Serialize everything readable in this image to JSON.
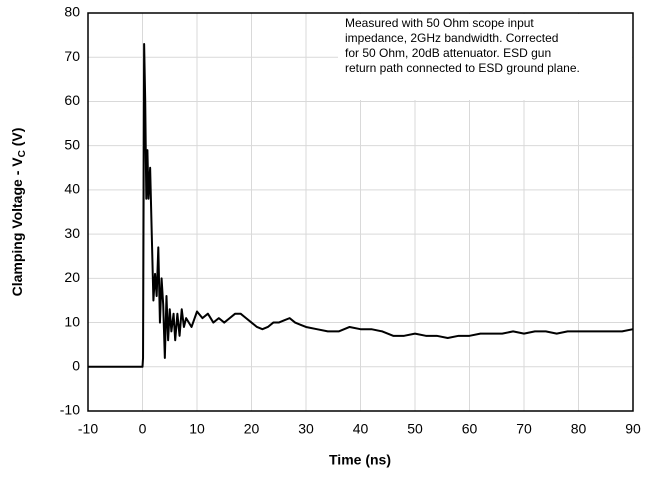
{
  "chart_data": {
    "type": "line",
    "x_label": "Time (ns)",
    "y_label": "Clamping Voltage - V",
    "y_label_sub": "C",
    "y_label_end": " (V)",
    "annotation": [
      "Measured with 50 Ohm scope input",
      "impedance, 2GHz bandwidth. Corrected",
      "for 50 Ohm, 20dB attenuator. ESD gun",
      "return path connected to ESD ground plane."
    ],
    "x": [
      -10,
      -5,
      0,
      0.1,
      0.3,
      0.5,
      0.7,
      0.9,
      1.1,
      1.4,
      1.7,
      2.0,
      2.3,
      2.6,
      2.9,
      3.2,
      3.5,
      3.8,
      4.1,
      4.4,
      4.7,
      5.0,
      5.3,
      5.7,
      6.0,
      6.4,
      6.8,
      7.2,
      7.6,
      8,
      9,
      10,
      11,
      12,
      13,
      14,
      15,
      16,
      17,
      18,
      19,
      20,
      21,
      22,
      23,
      24,
      25,
      26,
      27,
      28,
      29,
      30,
      32,
      34,
      36,
      38,
      40,
      42,
      44,
      46,
      48,
      50,
      52,
      54,
      56,
      58,
      60,
      62,
      64,
      66,
      68,
      70,
      72,
      74,
      76,
      78,
      80,
      82,
      84,
      86,
      88,
      90
    ],
    "values": [
      0,
      0,
      0,
      2,
      73,
      60,
      38,
      49,
      38,
      45,
      30,
      15,
      21,
      16,
      27,
      10,
      20,
      14,
      2,
      16,
      6,
      13,
      8,
      12,
      6,
      12,
      7,
      13,
      9,
      11,
      9,
      12.5,
      11,
      12,
      10,
      11,
      10,
      11,
      12,
      12,
      11,
      10,
      9,
      8.5,
      9,
      10,
      10,
      10.5,
      11,
      10,
      9.5,
      9,
      8.5,
      8,
      8,
      9,
      8.5,
      8.5,
      8,
      7,
      7,
      7.5,
      7,
      7,
      6.5,
      7,
      7,
      7.5,
      7.5,
      7.5,
      8,
      7.5,
      8,
      8,
      7.5,
      8,
      8,
      8,
      8,
      8,
      8,
      8.5
    ],
    "color": "#000000",
    "xlim": [
      -10,
      90
    ],
    "xticks": [
      -10,
      0,
      10,
      20,
      30,
      40,
      50,
      60,
      70,
      80,
      90
    ],
    "ylim": [
      -10,
      80
    ],
    "yticks": [
      -10,
      0,
      10,
      20,
      30,
      40,
      50,
      60,
      70,
      80
    ],
    "grid": true
  }
}
